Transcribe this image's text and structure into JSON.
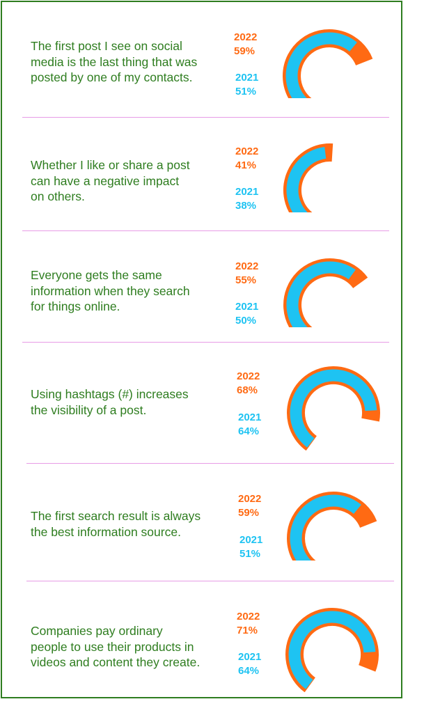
{
  "colors": {
    "year_2022": "#ff6a13",
    "year_2021": "#1ec3f2",
    "statement_text": "#2e7d1f",
    "border": "#2e7d1f",
    "separator": "#e79be6"
  },
  "chart_data": [
    {
      "type": "gauge",
      "statement": "The first post I see on social media is the last thing that was posted by one of my contacts.",
      "series": [
        {
          "name": "2022",
          "value": 59
        },
        {
          "name": "2021",
          "value": 51
        }
      ],
      "lines": [
        "The first post I see on social",
        "media is the last thing that was",
        "posted by one of my contacts."
      ]
    },
    {
      "type": "gauge",
      "statement": "Whether I like or share a post can have a negative impact on others.",
      "series": [
        {
          "name": "2022",
          "value": 41
        },
        {
          "name": "2021",
          "value": 38
        }
      ],
      "lines": [
        "Whether I like or share a post",
        "can have a negative impact",
        "on others."
      ]
    },
    {
      "type": "gauge",
      "statement": "Everyone gets the same information when they search for things online.",
      "series": [
        {
          "name": "2022",
          "value": 55
        },
        {
          "name": "2021",
          "value": 50
        }
      ],
      "lines": [
        "Everyone gets the same",
        "information when they search",
        "for things online."
      ]
    },
    {
      "type": "gauge",
      "statement": "Using hashtags (#) increases the visibility of a post.",
      "series": [
        {
          "name": "2022",
          "value": 68
        },
        {
          "name": "2021",
          "value": 64
        }
      ],
      "lines": [
        "Using hashtags (#) increases",
        "the visibility of a post."
      ]
    },
    {
      "type": "gauge",
      "statement": "The first search result is always the best information source.",
      "series": [
        {
          "name": "2022",
          "value": 59
        },
        {
          "name": "2021",
          "value": 51
        }
      ],
      "lines": [
        "The first search result is always",
        "the best information source."
      ]
    },
    {
      "type": "gauge",
      "statement": "Companies pay ordinary people to use their products in videos and content they create.",
      "series": [
        {
          "name": "2022",
          "value": 71
        },
        {
          "name": "2021",
          "value": 64
        }
      ],
      "lines": [
        "Companies pay ordinary",
        "people to use their products in",
        "videos and content they create."
      ]
    }
  ],
  "labels": {
    "p0": {
      "y2022": "2022",
      "v2022": "59%",
      "y2021": "2021",
      "v2021": "51%"
    },
    "p1": {
      "y2022": "2022",
      "v2022": "41%",
      "y2021": "2021",
      "v2021": "38%"
    },
    "p2": {
      "y2022": "2022",
      "v2022": "55%",
      "y2021": "2021",
      "v2021": "50%"
    },
    "p3": {
      "y2022": "2022",
      "v2022": "68%",
      "y2021": "2021",
      "v2021": "64%"
    },
    "p4": {
      "y2022": "2022",
      "v2022": "59%",
      "y2021": "2021",
      "v2021": "51%"
    },
    "p5": {
      "y2022": "2022",
      "v2022": "71%",
      "y2021": "2021",
      "v2021": "64%"
    }
  }
}
